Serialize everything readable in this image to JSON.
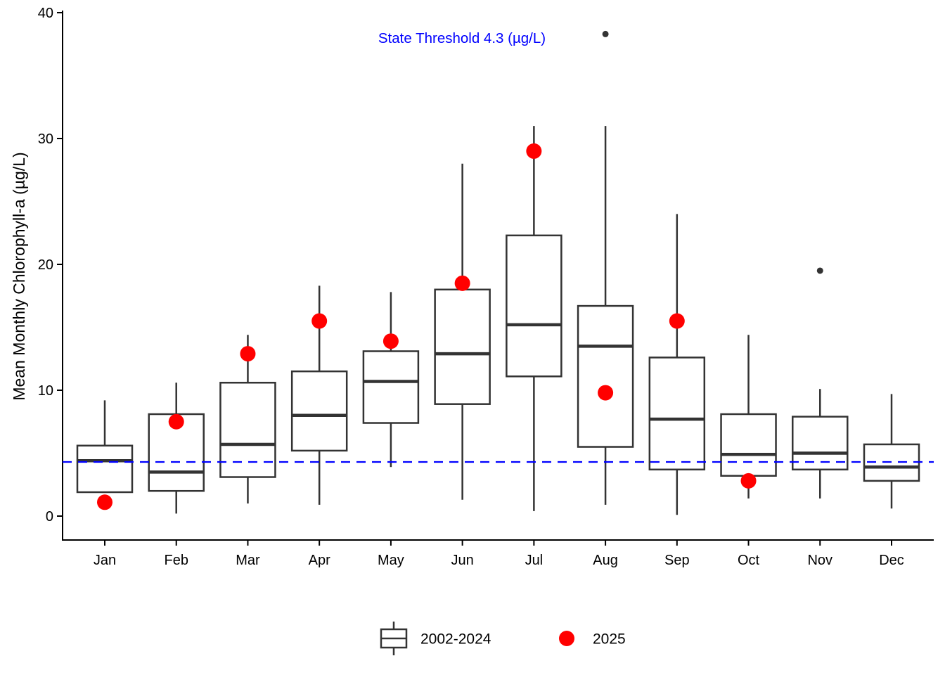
{
  "chart_data": {
    "type": "boxplot",
    "ylabel": "Mean Monthly Chlorophyll-a (µg/L)",
    "xlabel": "",
    "ylim": [
      0,
      40
    ],
    "yticks": [
      0,
      10,
      20,
      30,
      40
    ],
    "grid": "off",
    "categories": [
      "Jan",
      "Feb",
      "Mar",
      "Apr",
      "May",
      "Jun",
      "Jul",
      "Aug",
      "Sep",
      "Oct",
      "Nov",
      "Dec"
    ],
    "threshold": {
      "value": 4.3,
      "label": "State Threshold 4.3 (µg/L)",
      "color": "#0000ff",
      "style": "dashed"
    },
    "legend": [
      {
        "label": "2002-2024",
        "glyph": "boxplot",
        "color": "#333333"
      },
      {
        "label": "2025",
        "glyph": "dot",
        "color": "#ff0000"
      }
    ],
    "series_boxes_2002_2024": [
      {
        "month": "Jan",
        "whisker_low": null,
        "q1": 1.9,
        "median": 4.4,
        "q3": 5.6,
        "whisker_high": 9.2,
        "outliers": []
      },
      {
        "month": "Feb",
        "whisker_low": 0.2,
        "q1": 2.0,
        "median": 3.5,
        "q3": 8.1,
        "whisker_high": 10.6,
        "outliers": []
      },
      {
        "month": "Mar",
        "whisker_low": 1.0,
        "q1": 3.1,
        "median": 5.7,
        "q3": 10.6,
        "whisker_high": 14.4,
        "outliers": []
      },
      {
        "month": "Apr",
        "whisker_low": 0.9,
        "q1": 5.2,
        "median": 8.0,
        "q3": 11.5,
        "whisker_high": 18.3,
        "outliers": []
      },
      {
        "month": "May",
        "whisker_low": 3.9,
        "q1": 7.4,
        "median": 10.7,
        "q3": 13.1,
        "whisker_high": 17.8,
        "outliers": []
      },
      {
        "month": "Jun",
        "whisker_low": 1.3,
        "q1": 8.9,
        "median": 12.9,
        "q3": 18.0,
        "whisker_high": 28.0,
        "outliers": []
      },
      {
        "month": "Jul",
        "whisker_low": 0.4,
        "q1": 11.1,
        "median": 15.2,
        "q3": 22.3,
        "whisker_high": 31.0,
        "outliers": []
      },
      {
        "month": "Aug",
        "whisker_low": 0.9,
        "q1": 5.5,
        "median": 13.5,
        "q3": 16.7,
        "whisker_high": 31.0,
        "outliers": [
          38.3
        ]
      },
      {
        "month": "Sep",
        "whisker_low": 0.1,
        "q1": 3.7,
        "median": 7.7,
        "q3": 12.6,
        "whisker_high": 24.0,
        "outliers": []
      },
      {
        "month": "Oct",
        "whisker_low": 1.4,
        "q1": 3.2,
        "median": 4.9,
        "q3": 8.1,
        "whisker_high": 14.4,
        "outliers": []
      },
      {
        "month": "Nov",
        "whisker_low": 1.4,
        "q1": 3.7,
        "median": 5.0,
        "q3": 7.9,
        "whisker_high": 10.1,
        "outliers": [
          19.5
        ]
      },
      {
        "month": "Dec",
        "whisker_low": 0.6,
        "q1": 2.8,
        "median": 3.9,
        "q3": 5.7,
        "whisker_high": 9.7,
        "outliers": []
      }
    ],
    "series_points_2025": [
      {
        "month": "Jan",
        "value": 1.1
      },
      {
        "month": "Feb",
        "value": 7.5
      },
      {
        "month": "Mar",
        "value": 12.9
      },
      {
        "month": "Apr",
        "value": 15.5
      },
      {
        "month": "May",
        "value": 13.9
      },
      {
        "month": "Jun",
        "value": 18.5
      },
      {
        "month": "Jul",
        "value": 29.0
      },
      {
        "month": "Aug",
        "value": 9.8
      },
      {
        "month": "Sep",
        "value": 15.5
      },
      {
        "month": "Oct",
        "value": 2.8
      },
      {
        "month": "Nov",
        "value": null
      },
      {
        "month": "Dec",
        "value": null
      }
    ],
    "colors": {
      "box_stroke": "#333333",
      "box_fill": "#ffffff",
      "point_2025": "#ff0000",
      "outlier": "#333333",
      "threshold": "#0000ff",
      "axis": "#000000",
      "background": "#ffffff"
    }
  }
}
